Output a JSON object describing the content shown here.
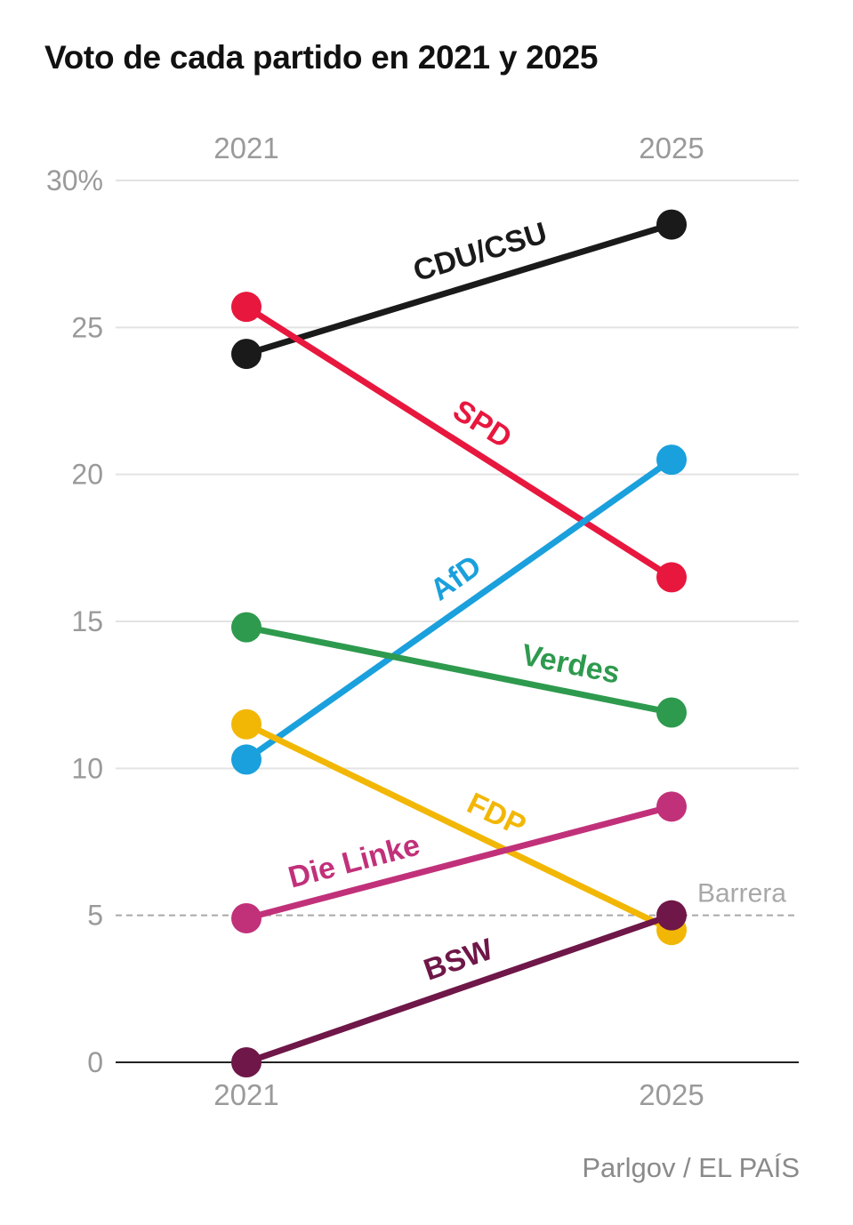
{
  "chart_data": {
    "type": "line",
    "title": "Voto de cada partido en 2021 y 2025",
    "x": [
      "2021",
      "2025"
    ],
    "y_ticks": [
      "0",
      "5",
      "10",
      "15",
      "20",
      "25",
      "30%"
    ],
    "ylim": [
      0,
      30
    ],
    "grid": true,
    "series": [
      {
        "name": "CDU/CSU",
        "color": "#1a1a1a",
        "values": [
          24.1,
          28.5
        ]
      },
      {
        "name": "SPD",
        "color": "#e8173e",
        "values": [
          25.7,
          16.5
        ]
      },
      {
        "name": "AfD",
        "color": "#1aa0dc",
        "values": [
          10.3,
          20.5
        ]
      },
      {
        "name": "Verdes",
        "color": "#2e9a4e",
        "values": [
          14.8,
          11.9
        ]
      },
      {
        "name": "FDP",
        "color": "#f2b705",
        "values": [
          11.5,
          4.5
        ]
      },
      {
        "name": "Die Linke",
        "color": "#c1317a",
        "values": [
          4.9,
          8.7
        ]
      },
      {
        "name": "BSW",
        "color": "#6e1748",
        "values": [
          0.0,
          5.0
        ]
      }
    ],
    "threshold": {
      "label": "Barrera",
      "value": 5
    }
  },
  "source": "Parlgov / EL PAÍS"
}
